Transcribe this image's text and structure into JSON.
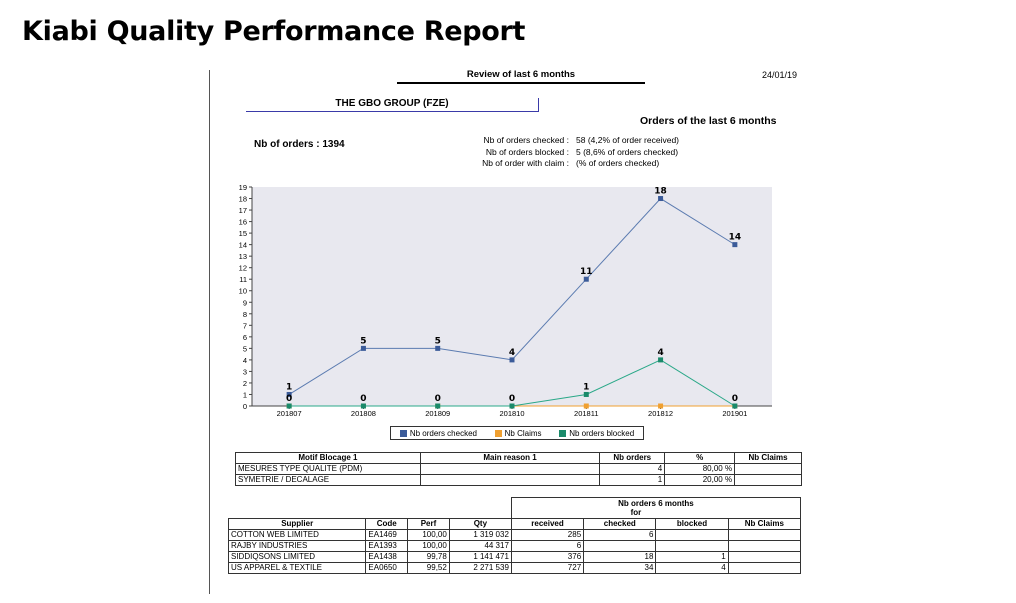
{
  "slide": {
    "title": "Kiabi Quality Performance Report"
  },
  "report": {
    "review": "Review of last 6 months",
    "date": "24/01/19",
    "group": "THE GBO GROUP (FZE)",
    "orders_title": "Orders of the last 6 months",
    "nb_orders": "Nb of orders : 1394",
    "stats": [
      {
        "label": "Nb of orders checked :",
        "value": "58 (4,2% of order received)"
      },
      {
        "label": "Nb of orders blocked :",
        "value": "5 (8,6% of orders checked)"
      },
      {
        "label": "Nb of order with claim :",
        "value": "(% of orders checked)"
      }
    ]
  },
  "chart_data": {
    "type": "line",
    "categories": [
      "201807",
      "201808",
      "201809",
      "201810",
      "201811",
      "201812",
      "201901"
    ],
    "ylim": [
      0,
      19
    ],
    "yticks": [
      "0",
      "1",
      "2",
      "3",
      "4",
      "5",
      "6",
      "7",
      "8",
      "9",
      "10",
      "11",
      "12",
      "13",
      "14",
      "15",
      "16",
      "17",
      "18",
      "19"
    ],
    "series": [
      {
        "name": "Nb orders checked",
        "color": "#5b7bb0",
        "marker": "#3b5b99",
        "values": [
          1,
          5,
          5,
          4,
          11,
          18,
          14
        ],
        "labels": [
          "1",
          "5",
          "5",
          "4",
          "11",
          "18",
          "14"
        ]
      },
      {
        "name": "Nb Claims",
        "color": "#f0a030",
        "marker": "#f0a030",
        "values": [
          0,
          0,
          0,
          0,
          0,
          0,
          0
        ],
        "labels": [
          "",
          "",
          "",
          "",
          "",
          "",
          ""
        ]
      },
      {
        "name": "Nb orders blocked",
        "color": "#2aa888",
        "marker": "#1a8a6a",
        "values": [
          0,
          0,
          0,
          0,
          1,
          4,
          0
        ],
        "labels": [
          "0",
          "0",
          "0",
          "0",
          "1",
          "4",
          "0"
        ]
      }
    ],
    "legend": [
      "Nb orders checked",
      "Nb Claims",
      "Nb orders blocked"
    ],
    "legend_position": "bottom-center",
    "background": "#e8e8ef"
  },
  "motif_table": {
    "headers": [
      "Motif Blocage 1",
      "Main reason 1",
      "Nb orders",
      "%",
      "Nb Claims"
    ],
    "rows": [
      [
        "MESURES TYPE QUALITE (PDM)",
        "",
        "4",
        "80,00 %",
        ""
      ],
      [
        "SYMETRIE / DECALAGE",
        "",
        "1",
        "20,00 %",
        ""
      ]
    ]
  },
  "supplier_table": {
    "group_header_top": "Nb orders",
    "group_header_bottom": "for",
    "group_header_period": "6 months",
    "headers": [
      "Supplier",
      "Code",
      "Perf",
      "Qty",
      "received",
      "checked",
      "blocked",
      "Nb Claims"
    ],
    "rows": [
      [
        "COTTON WEB LIMITED",
        "EA1469",
        "100,00",
        "1 319 032",
        "285",
        "6",
        "",
        ""
      ],
      [
        "RAJBY INDUSTRIES",
        "EA1393",
        "100,00",
        "44 317",
        "6",
        "",
        "",
        ""
      ],
      [
        "SIDDIQSONS LIMITED",
        "EA1438",
        "99,78",
        "1 141 471",
        "376",
        "18",
        "1",
        ""
      ],
      [
        "US APPAREL & TEXTILE",
        "EA0650",
        "99,52",
        "2 271 539",
        "727",
        "34",
        "4",
        ""
      ]
    ]
  }
}
